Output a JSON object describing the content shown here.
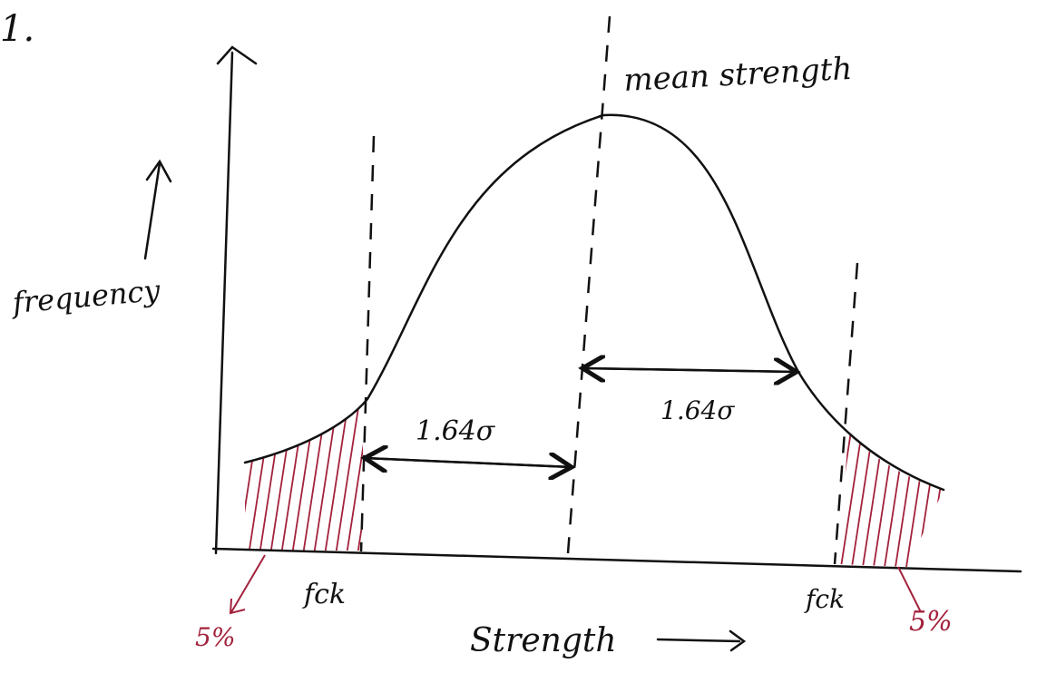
{
  "title": "1.",
  "labels": {
    "mean": "mean strength",
    "y_axis": "frequency",
    "x_axis": "Strength",
    "left_interval": "1.64σ",
    "right_interval": "1.64σ",
    "left_fck": "fck",
    "right_fck": "fck",
    "left_tail": "5%",
    "right_tail": "5%"
  }
}
